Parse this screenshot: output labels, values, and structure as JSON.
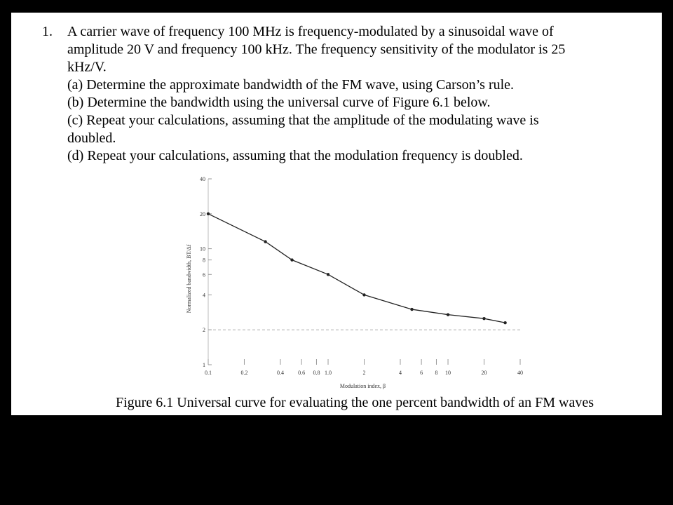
{
  "question": {
    "number": "1.",
    "lines": [
      "A carrier wave of frequency 100 MHz is frequency-modulated by a sinusoidal wave of",
      "amplitude 20 V and frequency 100 kHz. The frequency sensitivity of the modulator is 25",
      "kHz/V.",
      "(a) Determine the approximate bandwidth of the FM wave, using Carson’s rule.",
      "(b) Determine the bandwidth using the universal curve of Figure 6.1 below.",
      "(c) Repeat your calculations, assuming that the amplitude of the modulating wave is",
      "doubled.",
      "(d) Repeat your calculations, assuming that the modulation frequency is doubled."
    ]
  },
  "figure_caption": "Figure 6.1 Universal curve for evaluating the one percent bandwidth of an FM waves",
  "chart_data": {
    "type": "line",
    "x_label": "Modulation index, β",
    "y_label": "Normalized bandwidth, BT/Δf",
    "x": [
      0.1,
      0.3,
      0.5,
      1,
      2,
      5,
      10,
      20,
      30
    ],
    "series": [
      {
        "color": "#222222",
        "values": [
          20,
          11.5,
          8,
          6,
          4,
          3,
          2.7,
          2.5,
          2.3
        ]
      }
    ],
    "xlim": [
      0.1,
      40
    ],
    "ylim": [
      1,
      40
    ],
    "log_x": true,
    "log_y": true,
    "xticks": [
      0.1,
      0.2,
      0.4,
      0.6,
      0.8,
      {
        "value": 1,
        "label": "1.0"
      },
      2,
      4,
      6,
      8,
      10,
      20,
      40
    ],
    "yticks": [
      1,
      2,
      4,
      6,
      8,
      10,
      20,
      40
    ]
  }
}
